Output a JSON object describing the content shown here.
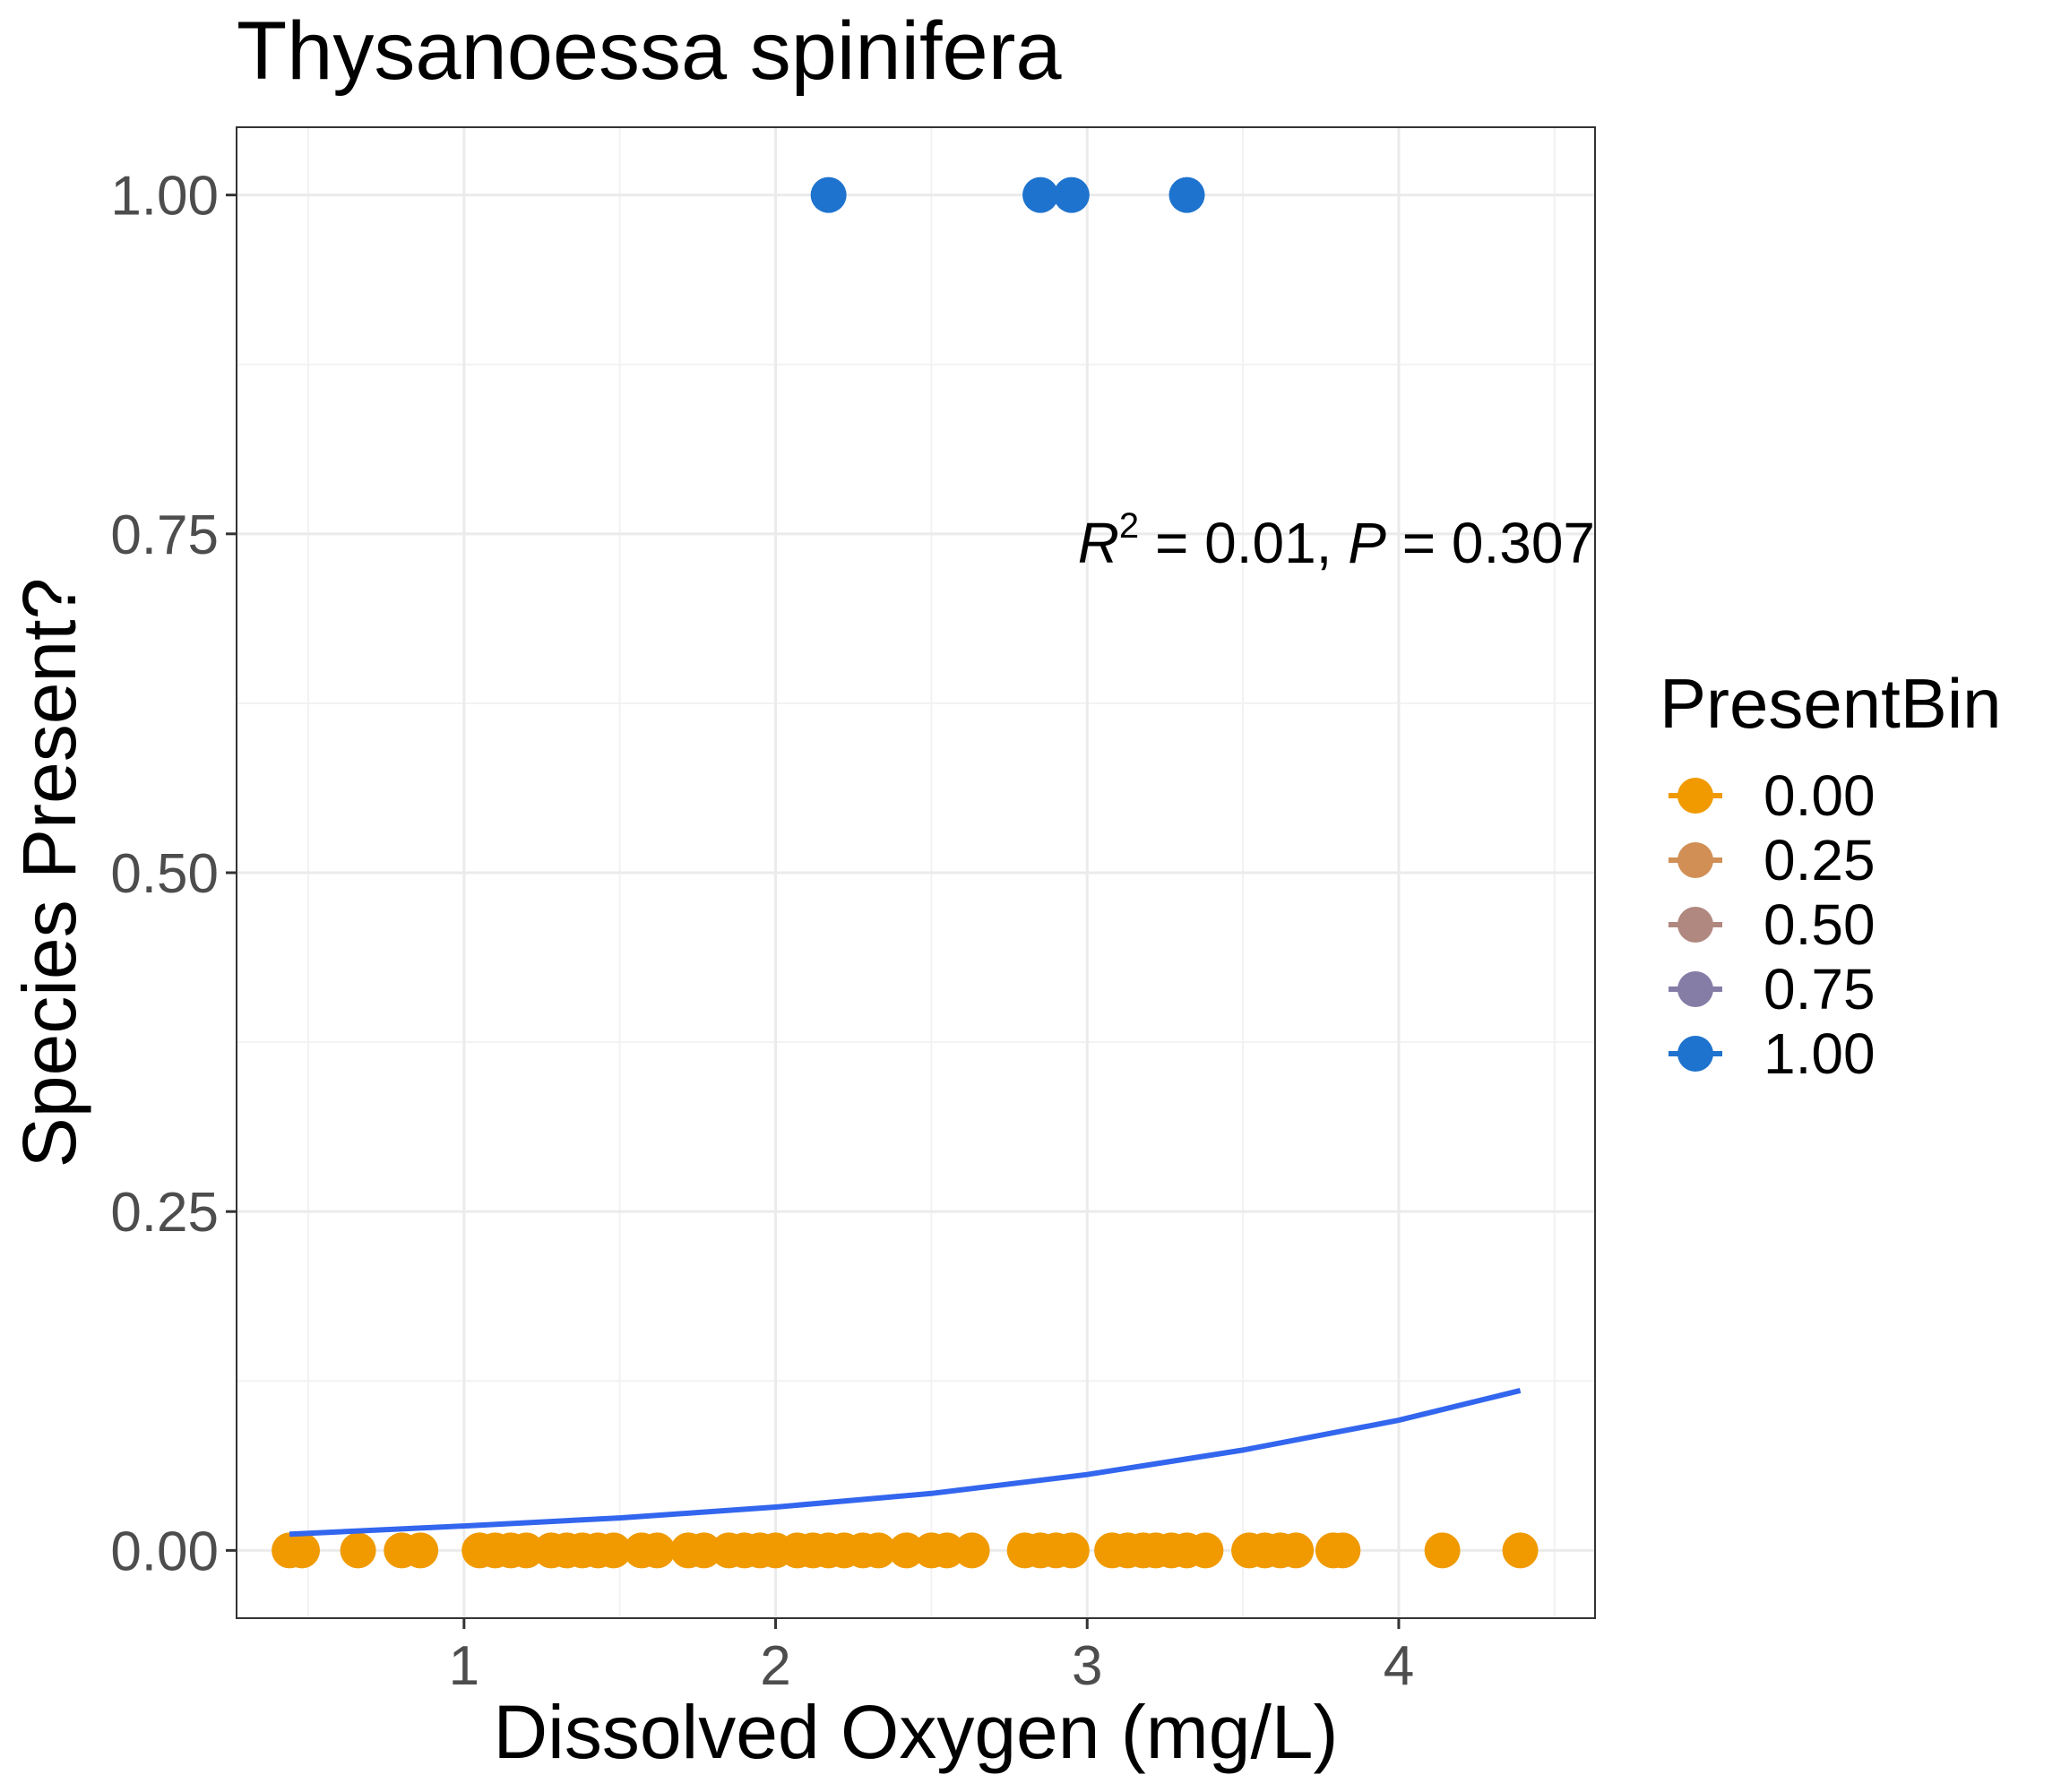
{
  "chart_data": {
    "type": "scatter",
    "title": "Thysanoessa spinifera",
    "xlabel": "Dissolved Oxygen (mg/L)",
    "ylabel": "Species Present?",
    "xlim": [
      0.27,
      4.63
    ],
    "ylim": [
      -0.05,
      1.05
    ],
    "x_ticks": [
      1,
      2,
      3,
      4
    ],
    "x_tick_labels": [
      "1",
      "2",
      "3",
      "4"
    ],
    "y_ticks": [
      0,
      0.25,
      0.5,
      0.75,
      1.0
    ],
    "y_tick_labels": [
      "0.00",
      "0.25",
      "0.50",
      "0.75",
      "1.00"
    ],
    "grid": true,
    "legend": {
      "title": "PresentBin",
      "position": "right",
      "entries": [
        {
          "label": "0.00",
          "color": "#F09A00"
        },
        {
          "label": "0.25",
          "color": "#D18F55"
        },
        {
          "label": "0.50",
          "color": "#B08880"
        },
        {
          "label": "0.75",
          "color": "#857DA6"
        },
        {
          "label": "1.00",
          "color": "#1E73CE"
        }
      ]
    },
    "annotation": {
      "r2_symbol": "R",
      "r2_exponent": "2",
      "r2_value": " = 0.01, ",
      "p_symbol": "P",
      "p_value": " = 0.307"
    },
    "series": [
      {
        "present_bin": 1.0,
        "color": "#1E73CE",
        "points": [
          {
            "x": 2.17,
            "y": 1
          },
          {
            "x": 2.85,
            "y": 1
          },
          {
            "x": 2.95,
            "y": 1
          },
          {
            "x": 3.32,
            "y": 1
          }
        ]
      },
      {
        "present_bin": 0.0,
        "color": "#F09A00",
        "points": [
          {
            "x": 0.44,
            "y": 0
          },
          {
            "x": 0.48,
            "y": 0
          },
          {
            "x": 0.66,
            "y": 0
          },
          {
            "x": 0.8,
            "y": 0
          },
          {
            "x": 0.86,
            "y": 0
          },
          {
            "x": 1.05,
            "y": 0
          },
          {
            "x": 1.1,
            "y": 0
          },
          {
            "x": 1.15,
            "y": 0
          },
          {
            "x": 1.2,
            "y": 0
          },
          {
            "x": 1.28,
            "y": 0
          },
          {
            "x": 1.33,
            "y": 0
          },
          {
            "x": 1.38,
            "y": 0
          },
          {
            "x": 1.43,
            "y": 0
          },
          {
            "x": 1.48,
            "y": 0
          },
          {
            "x": 1.57,
            "y": 0
          },
          {
            "x": 1.62,
            "y": 0
          },
          {
            "x": 1.72,
            "y": 0
          },
          {
            "x": 1.77,
            "y": 0
          },
          {
            "x": 1.85,
            "y": 0
          },
          {
            "x": 1.9,
            "y": 0
          },
          {
            "x": 1.95,
            "y": 0
          },
          {
            "x": 2.0,
            "y": 0
          },
          {
            "x": 2.07,
            "y": 0
          },
          {
            "x": 2.12,
            "y": 0
          },
          {
            "x": 2.17,
            "y": 0
          },
          {
            "x": 2.22,
            "y": 0
          },
          {
            "x": 2.28,
            "y": 0
          },
          {
            "x": 2.33,
            "y": 0
          },
          {
            "x": 2.42,
            "y": 0
          },
          {
            "x": 2.5,
            "y": 0
          },
          {
            "x": 2.55,
            "y": 0
          },
          {
            "x": 2.63,
            "y": 0
          },
          {
            "x": 2.8,
            "y": 0
          },
          {
            "x": 2.85,
            "y": 0
          },
          {
            "x": 2.9,
            "y": 0
          },
          {
            "x": 2.95,
            "y": 0
          },
          {
            "x": 3.08,
            "y": 0
          },
          {
            "x": 3.13,
            "y": 0
          },
          {
            "x": 3.18,
            "y": 0
          },
          {
            "x": 3.22,
            "y": 0
          },
          {
            "x": 3.27,
            "y": 0
          },
          {
            "x": 3.32,
            "y": 0
          },
          {
            "x": 3.38,
            "y": 0
          },
          {
            "x": 3.52,
            "y": 0
          },
          {
            "x": 3.57,
            "y": 0
          },
          {
            "x": 3.62,
            "y": 0
          },
          {
            "x": 3.67,
            "y": 0
          },
          {
            "x": 3.79,
            "y": 0
          },
          {
            "x": 3.82,
            "y": 0
          },
          {
            "x": 4.14,
            "y": 0
          },
          {
            "x": 4.39,
            "y": 0
          }
        ]
      }
    ],
    "fit_line": {
      "color": "#3366EE",
      "points": [
        {
          "x": 0.44,
          "y": 0.012
        },
        {
          "x": 1.0,
          "y": 0.018
        },
        {
          "x": 1.5,
          "y": 0.024
        },
        {
          "x": 2.0,
          "y": 0.032
        },
        {
          "x": 2.5,
          "y": 0.042
        },
        {
          "x": 3.0,
          "y": 0.056
        },
        {
          "x": 3.5,
          "y": 0.074
        },
        {
          "x": 4.0,
          "y": 0.096
        },
        {
          "x": 4.39,
          "y": 0.118
        }
      ]
    }
  }
}
